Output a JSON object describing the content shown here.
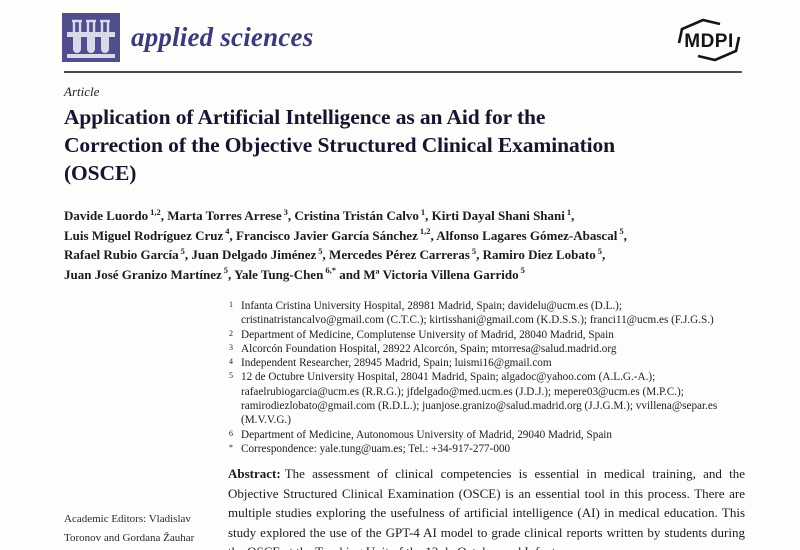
{
  "header": {
    "journal_name": "applied sciences",
    "publisher": "MDPI",
    "journal_logo_icon": "test-tubes-rack-icon",
    "publisher_logo_icon": "mdpi-open-hexagon-icon"
  },
  "article": {
    "type_label": "Article",
    "title": "Application of Artificial Intelligence as an Aid for the Correction of the Objective Structured Clinical Examination (OSCE)",
    "title_lines": [
      "Application of Artificial Intelligence as an Aid for the",
      "Correction of the Objective Structured Clinical Examination",
      "(OSCE)"
    ]
  },
  "author_lines": [
    [
      {
        "name": "Davide Luordo",
        "sup": "1,2",
        "after": ", "
      },
      {
        "name": "Marta Torres Arrese",
        "sup": "3",
        "after": ", "
      },
      {
        "name": "Cristina Tristán Calvo",
        "sup": "1",
        "after": ", "
      },
      {
        "name": "Kirti Dayal Shani Shani",
        "sup": "1",
        "after": ","
      }
    ],
    [
      {
        "name": "Luis Miguel Rodríguez Cruz",
        "sup": "4",
        "after": ", "
      },
      {
        "name": "Francisco Javier García Sánchez",
        "sup": "1,2",
        "after": ", "
      },
      {
        "name": "Alfonso Lagares Gómez-Abascal",
        "sup": "5",
        "after": ","
      }
    ],
    [
      {
        "name": "Rafael Rubio García",
        "sup": "5",
        "after": ", "
      },
      {
        "name": "Juan Delgado Jiménez",
        "sup": "5",
        "after": ", "
      },
      {
        "name": "Mercedes Pérez Carreras",
        "sup": "5",
        "after": ", "
      },
      {
        "name": "Ramiro Diez Lobato",
        "sup": "5",
        "after": ","
      }
    ],
    [
      {
        "name": "Juan José Granizo Martínez",
        "sup": "5",
        "after": ", "
      },
      {
        "name": "Yale Tung-Chen",
        "sup": "6,*",
        "after": " and "
      },
      {
        "name": "Mª Victoria Villena Garrido",
        "sup": "5",
        "after": ""
      }
    ]
  ],
  "affiliations": [
    {
      "marker": "1",
      "text": "Infanta Cristina University Hospital, 28981 Madrid, Spain; davidelu@ucm.es (D.L.); cristinatristancalvo@gmail.com (C.T.C.); kirtisshani@gmail.com (K.D.S.S.); franci11@ucm.es (F.J.G.S.)"
    },
    {
      "marker": "2",
      "text": "Department of Medicine, Complutense University of Madrid, 28040 Madrid, Spain"
    },
    {
      "marker": "3",
      "text": "Alcorcón Foundation Hospital, 28922 Alcorcón, Spain; mtorresa@salud.madrid.org"
    },
    {
      "marker": "4",
      "text": "Independent Researcher, 28945 Madrid, Spain; luismi16@gmail.com"
    },
    {
      "marker": "5",
      "text": "12 de Octubre University Hospital, 28041 Madrid, Spain; algadoc@yahoo.com (A.L.G.-A.); rafaelrubiogarcia@ucm.es (R.R.G.); jfdelgado@med.ucm.es (J.D.J.); mepere03@ucm.es (M.P.C.); ramirodiezlobato@gmail.com (R.D.L.); juanjose.granizo@salud.madrid.org (J.J.G.M.); vvillena@separ.es (M.V.V.G.)"
    },
    {
      "marker": "6",
      "text": "Department of Medicine, Autonomous University of Madrid, 29040 Madrid, Spain"
    },
    {
      "marker": "*",
      "text": "Correspondence: yale.tung@uam.es; Tel.: +34-917-277-000"
    }
  ],
  "editors": {
    "text": "Academic Editors: Vladislav Toronov and Gordana Žauhar"
  },
  "abstract": {
    "label": "Abstract:",
    "text": "The assessment of clinical competencies is essential in medical training, and the Objective Structured Clinical Examination (OSCE) is an essential tool in this process. There are multiple studies exploring the usefulness of artificial intelligence (AI) in medical education. This study explored the use of the GPT-4 AI model to grade clinical reports written by students during the OSCE at the Teaching Unit of the 12 de Octubre and Infanta"
  },
  "colors": {
    "brand_square": "#514e8e",
    "brand_text": "#3d3a7c",
    "logo_tube_light": "#d9d9ec",
    "title_ink": "#15152f",
    "rule_gray": "#4b4b4b"
  }
}
